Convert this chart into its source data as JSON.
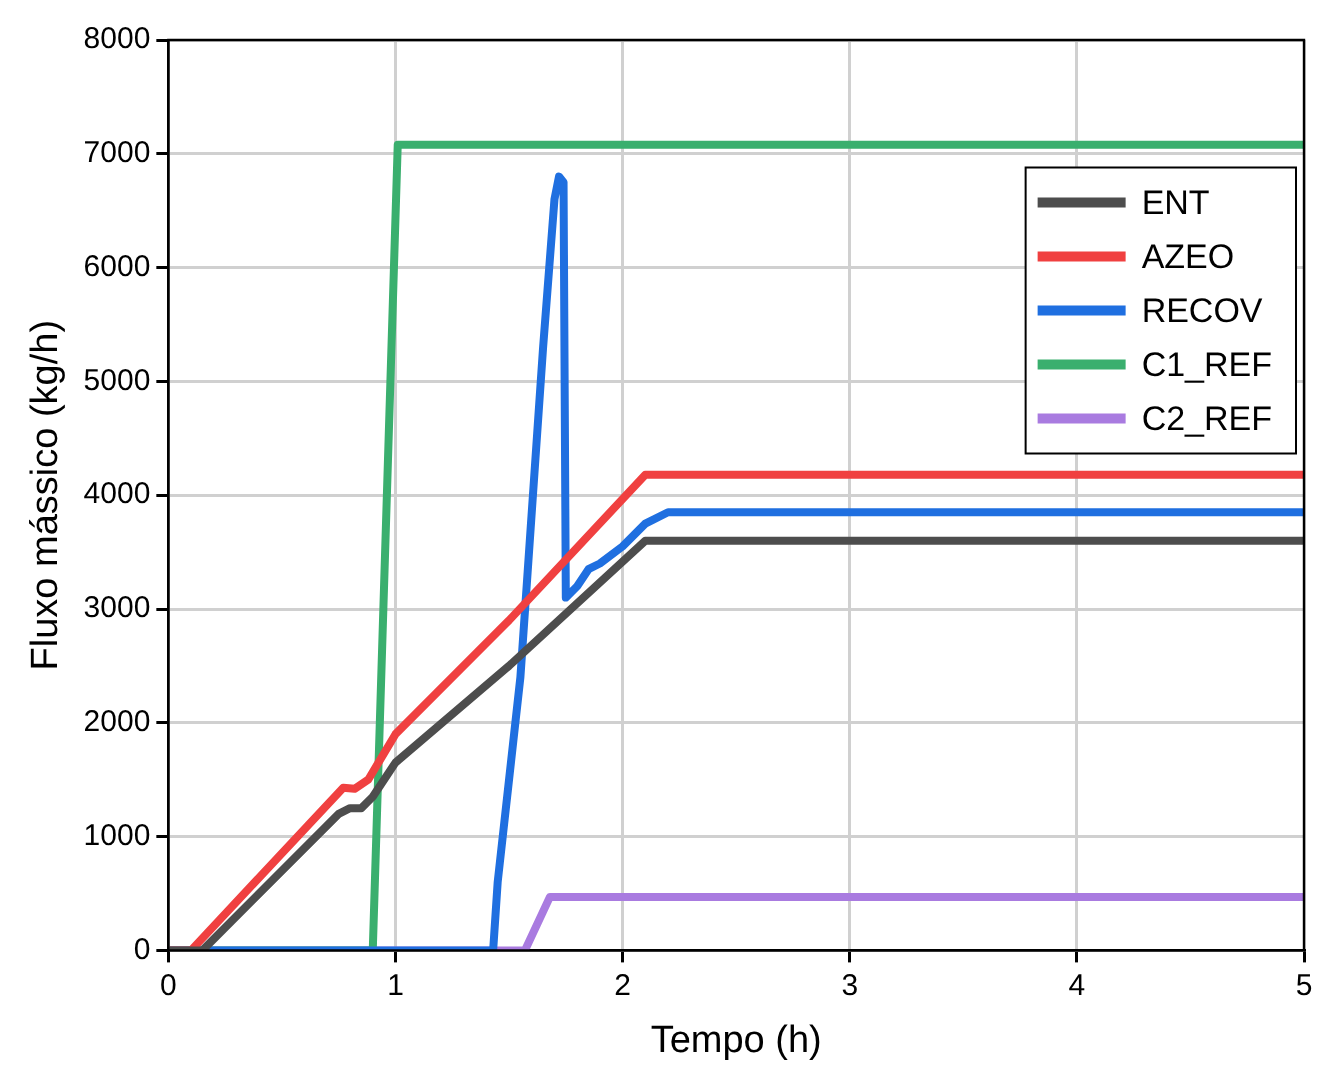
{
  "chart_data": {
    "type": "line",
    "xlabel": "Tempo (h)",
    "ylabel": "Fluxo mássico (kg/h)",
    "xlim": [
      0,
      5
    ],
    "xticks": [
      0,
      1,
      2,
      3,
      4,
      5
    ],
    "ylim": [
      0,
      8000
    ],
    "yticks": [
      0,
      1000,
      2000,
      3000,
      4000,
      5000,
      6000,
      7000,
      8000
    ],
    "grid": true,
    "legend": "top right",
    "marker": "none",
    "line_style": "solid",
    "series": [
      {
        "name": "ENT",
        "color": "#4d4d4d",
        "x": [
          0,
          0.15,
          0.75,
          0.8,
          0.85,
          0.9,
          1.0,
          1.5,
          2.1,
          5
        ],
        "values": [
          0,
          0,
          1200,
          1250,
          1250,
          1350,
          1650,
          2500,
          3600,
          3600
        ]
      },
      {
        "name": "AZEO",
        "color": "#f04040",
        "x": [
          0,
          0.1,
          0.77,
          0.82,
          0.88,
          1.0,
          1.5,
          2.1,
          5
        ],
        "values": [
          0,
          0,
          1430,
          1420,
          1500,
          1900,
          2900,
          4180,
          4180
        ]
      },
      {
        "name": "RECOV",
        "color": "#1f6fe0",
        "x": [
          0,
          1.43,
          1.45,
          1.5,
          1.55,
          1.65,
          1.7,
          1.72,
          1.74,
          1.75,
          1.8,
          1.85,
          1.9,
          2.0,
          2.1,
          2.2,
          5
        ],
        "values": [
          0,
          0,
          600,
          1500,
          2400,
          5300,
          6600,
          6800,
          6750,
          3100,
          3200,
          3350,
          3400,
          3550,
          3750,
          3850,
          3850
        ]
      },
      {
        "name": "C1_REF",
        "color": "#3aaf6e",
        "x": [
          0,
          0.9,
          1.01,
          5
        ],
        "values": [
          0,
          0,
          7080,
          7080
        ]
      },
      {
        "name": "C2_REF",
        "color": "#a97be0",
        "x": [
          0,
          1.57,
          1.68,
          5
        ],
        "values": [
          0,
          0,
          470,
          470
        ]
      }
    ]
  }
}
